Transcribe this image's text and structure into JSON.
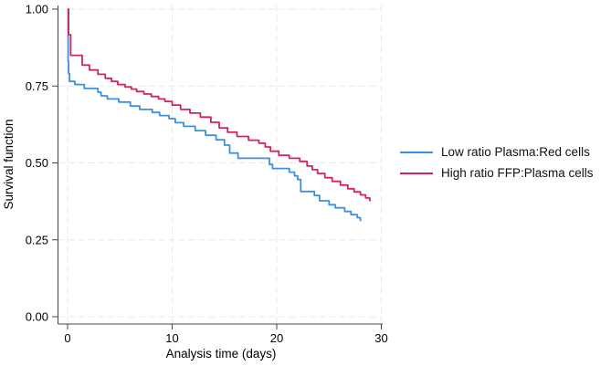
{
  "chart_data": {
    "type": "line",
    "subtype": "step-survival",
    "xlabel": "Analysis time (days)",
    "ylabel": "Survival function",
    "xlim": [
      0,
      30
    ],
    "ylim": [
      0,
      1
    ],
    "x_ticks": [
      {
        "value": 0,
        "label": "0"
      },
      {
        "value": 10,
        "label": "10"
      },
      {
        "value": 20,
        "label": "20"
      },
      {
        "value": 30,
        "label": "30"
      }
    ],
    "y_ticks": [
      {
        "value": 0.0,
        "label": "0.00"
      },
      {
        "value": 0.25,
        "label": "0.25"
      },
      {
        "value": 0.5,
        "label": "0.50"
      },
      {
        "value": 0.75,
        "label": "0.75"
      },
      {
        "value": 1.0,
        "label": "1.00"
      }
    ],
    "grid": "dashed-both-axes",
    "legend_position": "right-outside",
    "series": [
      {
        "name": "Low ratio Plasma:Red cells",
        "color": "#3f8fe0",
        "end": 28.1,
        "points": [
          [
            0,
            1.0
          ],
          [
            0.05,
            0.83
          ],
          [
            0.1,
            0.79
          ],
          [
            0.18,
            0.765
          ],
          [
            0.7,
            0.755
          ],
          [
            1.6,
            0.742
          ],
          [
            2.9,
            0.73
          ],
          [
            3.2,
            0.718
          ],
          [
            3.8,
            0.708
          ],
          [
            4.9,
            0.698
          ],
          [
            6.0,
            0.685
          ],
          [
            6.9,
            0.674
          ],
          [
            8.1,
            0.664
          ],
          [
            8.8,
            0.654
          ],
          [
            9.7,
            0.644
          ],
          [
            10.3,
            0.631
          ],
          [
            11.1,
            0.619
          ],
          [
            12.2,
            0.605
          ],
          [
            13.2,
            0.59
          ],
          [
            14.2,
            0.575
          ],
          [
            15.0,
            0.558
          ],
          [
            15.5,
            0.532
          ],
          [
            16.3,
            0.515
          ],
          [
            19.3,
            0.495
          ],
          [
            19.6,
            0.482
          ],
          [
            21.2,
            0.47
          ],
          [
            21.7,
            0.458
          ],
          [
            22.0,
            0.446
          ],
          [
            22.3,
            0.407
          ],
          [
            23.6,
            0.394
          ],
          [
            24.1,
            0.377
          ],
          [
            25.0,
            0.364
          ],
          [
            25.6,
            0.354
          ],
          [
            26.5,
            0.342
          ],
          [
            27.1,
            0.332
          ],
          [
            27.7,
            0.322
          ],
          [
            28.0,
            0.313
          ]
        ]
      },
      {
        "name": "High ratio FFP:Plasma cells",
        "color": "#d4235e",
        "end": 29.0,
        "points": [
          [
            0,
            1.0
          ],
          [
            0.1,
            0.917
          ],
          [
            0.3,
            0.85
          ],
          [
            1.4,
            0.818
          ],
          [
            2.1,
            0.802
          ],
          [
            2.9,
            0.788
          ],
          [
            3.6,
            0.775
          ],
          [
            4.2,
            0.765
          ],
          [
            4.8,
            0.755
          ],
          [
            5.5,
            0.747
          ],
          [
            6.1,
            0.74
          ],
          [
            6.6,
            0.732
          ],
          [
            7.3,
            0.724
          ],
          [
            8.0,
            0.716
          ],
          [
            8.7,
            0.708
          ],
          [
            9.3,
            0.7
          ],
          [
            10.0,
            0.688
          ],
          [
            10.8,
            0.674
          ],
          [
            11.7,
            0.662
          ],
          [
            12.7,
            0.649
          ],
          [
            13.7,
            0.632
          ],
          [
            14.5,
            0.614
          ],
          [
            15.3,
            0.6
          ],
          [
            16.2,
            0.586
          ],
          [
            17.3,
            0.574
          ],
          [
            18.3,
            0.564
          ],
          [
            18.9,
            0.552
          ],
          [
            19.4,
            0.538
          ],
          [
            20.2,
            0.525
          ],
          [
            21.2,
            0.515
          ],
          [
            22.2,
            0.505
          ],
          [
            22.9,
            0.49
          ],
          [
            23.4,
            0.478
          ],
          [
            23.9,
            0.466
          ],
          [
            24.6,
            0.452
          ],
          [
            25.3,
            0.44
          ],
          [
            26.1,
            0.428
          ],
          [
            26.8,
            0.416
          ],
          [
            27.4,
            0.406
          ],
          [
            28.0,
            0.396
          ],
          [
            28.5,
            0.386
          ],
          [
            28.9,
            0.378
          ]
        ]
      }
    ]
  }
}
